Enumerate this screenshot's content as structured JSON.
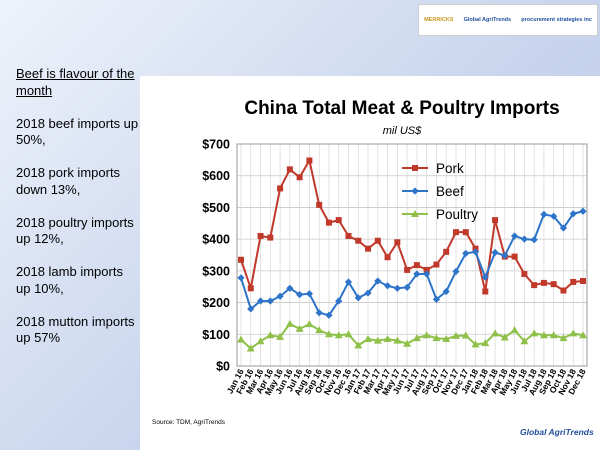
{
  "logos": [
    "MERRICKS",
    "Global AgriTrends",
    "procurement strategies inc"
  ],
  "sidebar": {
    "heading": "Beef is flavour of the month",
    "points": [
      "2018 beef imports up 50%,",
      "2018 pork imports down 13%,",
      "2018 poultry imports up 12%,",
      "2018 lamb imports up 10%,",
      "2018 mutton imports up 57%"
    ]
  },
  "source": "Source:  TDM, AgriTrends",
  "footer_logo": "Global AgriTrends",
  "colors": {
    "pork": "#c0392b",
    "beef": "#2e74c9",
    "poultry": "#8fc04a"
  },
  "chart_data": {
    "type": "line",
    "title": "China Total Meat & Poultry Imports",
    "subtitle": "mil US$",
    "ylim": [
      0,
      700
    ],
    "yticks": [
      "$0",
      "$100",
      "$200",
      "$300",
      "$400",
      "$500",
      "$600",
      "$700"
    ],
    "grid": true,
    "legend": "top-right",
    "categories": [
      "Jan-16",
      "Feb-16",
      "Mar-16",
      "Apr-16",
      "May-16",
      "Jun-16",
      "Jul-16",
      "Aug-16",
      "Sep-16",
      "Oct-16",
      "Nov-16",
      "Dec-16",
      "Jan-17",
      "Feb-17",
      "Mar-17",
      "Apr-17",
      "May-17",
      "Jun-17",
      "Jul-17",
      "Aug-17",
      "Sep-17",
      "Oct-17",
      "Nov-17",
      "Dec-17",
      "Jan-18",
      "Feb-18",
      "Mar-18",
      "Apr-18",
      "May-18",
      "Jun-18",
      "Jul-18",
      "Aug-18",
      "Sep-18",
      "Oct-18",
      "Nov-18",
      "Dec-18"
    ],
    "xticklabels": [
      "Jan 16",
      "Feb 16",
      "Mar 16",
      "Apr 16",
      "May 16",
      "Jun 16",
      "Jul 16",
      "Aug 16",
      "Sep 16",
      "Oct 16",
      "Nov 16",
      "Dec 16",
      "Jan 17",
      "Feb 17",
      "Mar 17",
      "Apr 17",
      "May 17",
      "Jun 17",
      "Jul 17",
      "Aug 17",
      "Sep 17",
      "Oct 17",
      "Nov 17",
      "Dec 17",
      "Jan 18",
      "Feb 18",
      "Mar 18",
      "Apr 18",
      "May 18",
      "Jun 18",
      "Jul 18",
      "Aug 18",
      "Sep 18",
      "Oct 18",
      "Nov 18",
      "Dec 18"
    ],
    "series": [
      {
        "name": "Pork",
        "color": "#c0392b",
        "marker": "square",
        "values": [
          335,
          245,
          410,
          405,
          560,
          620,
          595,
          648,
          508,
          452,
          460,
          410,
          395,
          370,
          395,
          343,
          390,
          303,
          318,
          303,
          320,
          360,
          422,
          422,
          370,
          235,
          460,
          345,
          345,
          290,
          255,
          262,
          258,
          238,
          265,
          268
        ]
      },
      {
        "name": "Beef",
        "color": "#2e74c9",
        "marker": "diamond",
        "values": [
          278,
          180,
          205,
          205,
          220,
          245,
          225,
          228,
          168,
          160,
          205,
          265,
          215,
          230,
          268,
          253,
          245,
          248,
          290,
          290,
          210,
          235,
          298,
          355,
          360,
          280,
          358,
          348,
          410,
          400,
          398,
          478,
          472,
          435,
          480,
          488
        ]
      },
      {
        "name": "Poultry",
        "color": "#8fc04a",
        "marker": "triangle",
        "values": [
          83,
          55,
          78,
          97,
          92,
          133,
          117,
          132,
          113,
          100,
          97,
          100,
          65,
          85,
          80,
          85,
          80,
          70,
          88,
          97,
          88,
          85,
          95,
          96,
          68,
          72,
          103,
          90,
          113,
          78,
          103,
          97,
          97,
          88,
          103,
          97
        ]
      }
    ]
  }
}
